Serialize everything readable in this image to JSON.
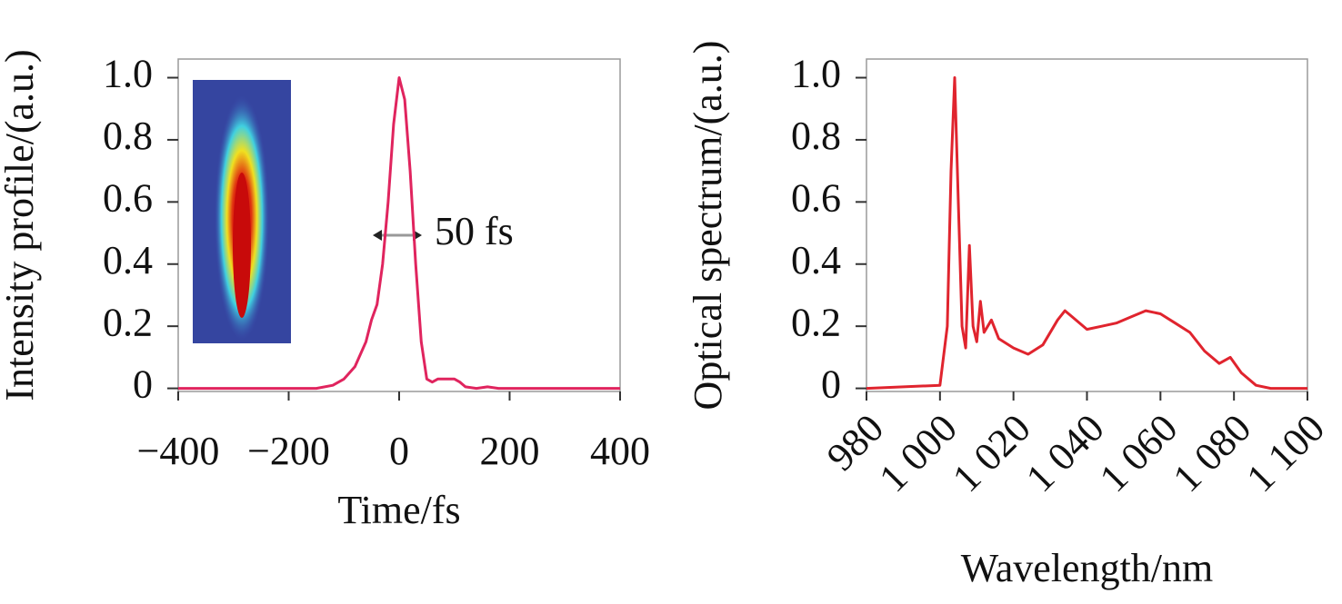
{
  "chart_data": [
    {
      "type": "line",
      "x_label": "Time/fs",
      "y_label": "Intensity profile/(a.u.)",
      "annotation": "50 fs",
      "color": "#e0245e",
      "x": [
        -400,
        -200,
        -150,
        -120,
        -100,
        -80,
        -60,
        -50,
        -40,
        -30,
        -20,
        -10,
        0,
        10,
        20,
        30,
        40,
        50,
        60,
        70,
        80,
        100,
        110,
        120,
        140,
        160,
        180,
        400
      ],
      "values": [
        0,
        0,
        0,
        0.01,
        0.03,
        0.07,
        0.15,
        0.22,
        0.27,
        0.4,
        0.6,
        0.85,
        1.0,
        0.93,
        0.7,
        0.4,
        0.15,
        0.03,
        0.02,
        0.03,
        0.03,
        0.03,
        0.02,
        0.005,
        0,
        0.005,
        0,
        0
      ],
      "xlim": [
        -400,
        400
      ],
      "ylim": [
        -0.01,
        1.06
      ],
      "xticks": [
        {
          "value": -400,
          "label": "−400"
        },
        {
          "value": -200,
          "label": "−200"
        },
        0,
        200,
        400
      ],
      "yticks": [
        0,
        0.2,
        0.4,
        0.6,
        0.8,
        {
          "value": 1,
          "label": "1.0"
        }
      ]
    },
    {
      "type": "line",
      "x_label": "Wavelength/nm",
      "y_label": "Optical spectrum/(a.u.)",
      "color": "#e0242e",
      "x": [
        980,
        1000,
        1002,
        1003,
        1004,
        1005,
        1006,
        1007,
        1008,
        1009,
        1010,
        1011,
        1012,
        1014,
        1016,
        1020,
        1024,
        1028,
        1032,
        1034,
        1036,
        1040,
        1044,
        1048,
        1052,
        1056,
        1060,
        1064,
        1068,
        1072,
        1076,
        1079,
        1082,
        1086,
        1090,
        1100
      ],
      "values": [
        0,
        0.01,
        0.2,
        0.7,
        1.0,
        0.6,
        0.2,
        0.13,
        0.46,
        0.2,
        0.15,
        0.28,
        0.18,
        0.22,
        0.16,
        0.13,
        0.11,
        0.14,
        0.22,
        0.25,
        0.23,
        0.19,
        0.2,
        0.21,
        0.23,
        0.25,
        0.24,
        0.21,
        0.18,
        0.12,
        0.08,
        0.1,
        0.05,
        0.01,
        0,
        0
      ],
      "xlim": [
        980,
        1100
      ],
      "ylim": [
        -0.01,
        1.06
      ],
      "xticks": [
        980,
        {
          "value": 1000,
          "label": "1 000"
        },
        {
          "value": 1020,
          "label": "1 020"
        },
        {
          "value": 1040,
          "label": "1 040"
        },
        {
          "value": 1060,
          "label": "1 060"
        },
        {
          "value": 1080,
          "label": "1 080"
        },
        {
          "value": 1100,
          "label": "1 100"
        }
      ],
      "yticks": [
        0,
        0.2,
        0.4,
        0.6,
        0.8,
        {
          "value": 1,
          "label": "1.0"
        }
      ],
      "xtick_rotation": -45
    }
  ]
}
